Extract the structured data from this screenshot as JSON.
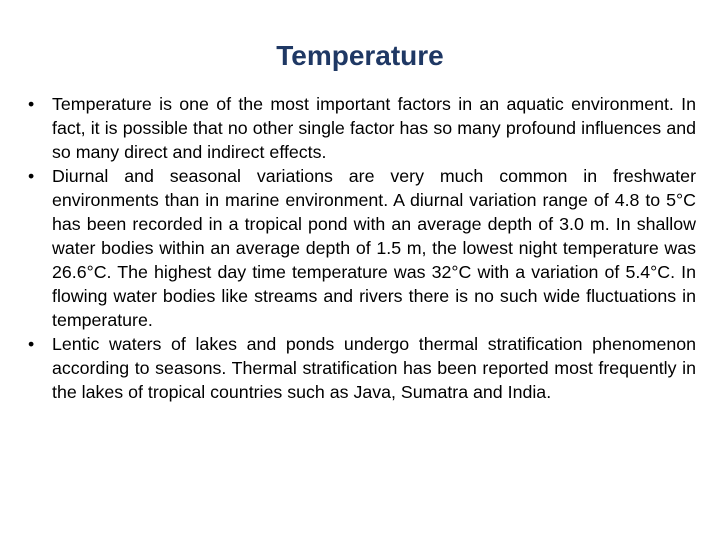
{
  "slide": {
    "title": "Temperature",
    "bullet_symbol": "•",
    "bullets": [
      "Temperature is one of the most important factors in an aquatic environment. In fact, it is possible that no other single factor has so many profound influences and so many direct and indirect effects.",
      "Diurnal and seasonal variations are very much common in freshwater environments than in marine environment. A diurnal variation range of 4.8 to 5°C has been recorded in a tropical pond with an average depth of 3.0 m. In shallow water bodies within an average depth of 1.5 m, the lowest night temperature was 26.6°C. The highest day time temperature was 32°C with a variation of 5.4°C. In flowing water bodies like streams and rivers there is no such wide fluctuations in temperature.",
      "Lentic waters of lakes and ponds undergo thermal stratification phenomenon according to seasons. Thermal stratification has been reported most frequently in the lakes of tropical countries such as Java, Sumatra and India."
    ]
  },
  "colors": {
    "title": "#1f3864",
    "text": "#000000",
    "background": "#ffffff"
  }
}
